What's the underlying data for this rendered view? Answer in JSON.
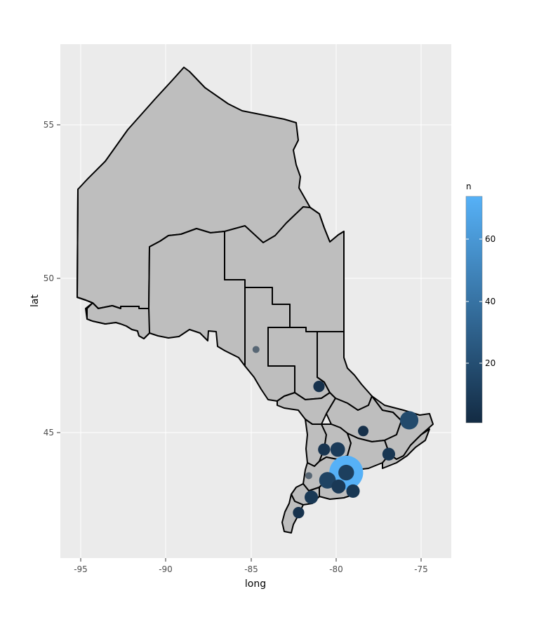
{
  "chart_data": {
    "type": "scatter",
    "title": "",
    "xlabel": "long",
    "ylabel": "lat",
    "xlim": [
      -96.2,
      -73.2
    ],
    "ylim": [
      40.3,
      57.2
    ],
    "x_ticks": [
      -95,
      -90,
      -85,
      -80,
      -75
    ],
    "x_tick_labels": [
      "-95",
      "-90",
      "-85",
      "-80",
      "-75"
    ],
    "y_ticks": [
      45,
      50,
      55
    ],
    "y_tick_labels": [
      "45",
      "50",
      "55"
    ],
    "grid": true,
    "legend": {
      "title": "n",
      "placement": "right",
      "type": "colorbar",
      "range": [
        1,
        75
      ],
      "ticks": [
        20,
        40,
        60
      ],
      "tick_labels": [
        "20",
        "40",
        "60"
      ],
      "color_low": "#132B43",
      "color_high": "#56B1F7"
    },
    "points": [
      {
        "long": -79.4,
        "lat": 43.7,
        "n": 75
      },
      {
        "long": -79.4,
        "lat": 43.7,
        "n": 12
      },
      {
        "long": -75.7,
        "lat": 45.4,
        "n": 18
      },
      {
        "long": -80.5,
        "lat": 43.45,
        "n": 14
      },
      {
        "long": -79.85,
        "lat": 43.25,
        "n": 9
      },
      {
        "long": -79.0,
        "lat": 43.1,
        "n": 8
      },
      {
        "long": -79.9,
        "lat": 44.45,
        "n": 10
      },
      {
        "long": -80.7,
        "lat": 44.45,
        "n": 6
      },
      {
        "long": -81.45,
        "lat": 42.9,
        "n": 8
      },
      {
        "long": -82.2,
        "lat": 42.4,
        "n": 5
      },
      {
        "long": -76.9,
        "lat": 44.3,
        "n": 7
      },
      {
        "long": -78.4,
        "lat": 45.05,
        "n": 4
      },
      {
        "long": -81.0,
        "lat": 46.5,
        "n": 5
      },
      {
        "long": -84.7,
        "lat": 47.7,
        "n": 1
      },
      {
        "long": -81.6,
        "lat": 43.6,
        "n": 1
      }
    ]
  },
  "map": {
    "region_fill": "#BEBEBE",
    "border_color": "#000000",
    "panel_bg": "#EBEBEB",
    "grid_color": "#FFFFFF"
  }
}
